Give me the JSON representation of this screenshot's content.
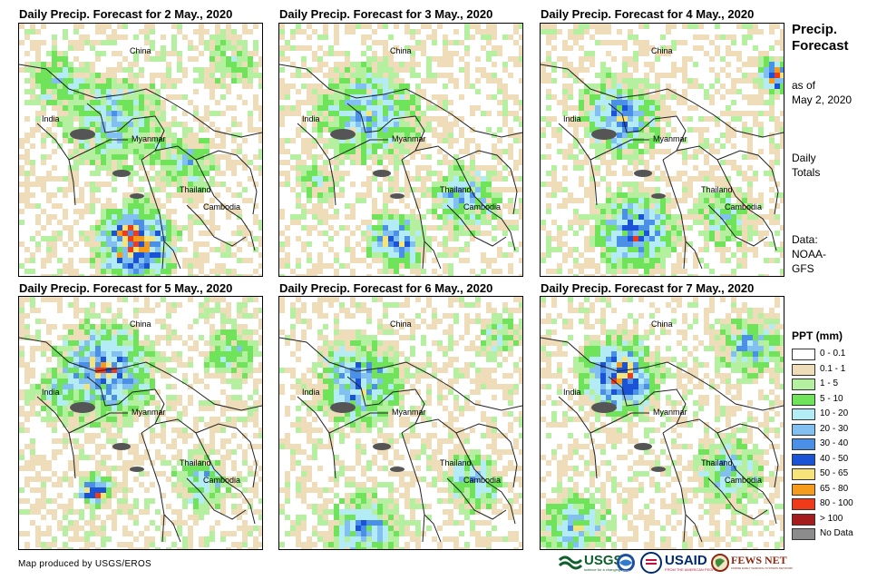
{
  "panels": [
    {
      "title": "Daily Precip. Forecast for 2 May., 2020"
    },
    {
      "title": "Daily Precip. Forecast for 3 May., 2020"
    },
    {
      "title": "Daily Precip. Forecast for 4 May., 2020"
    },
    {
      "title": "Daily Precip. Forecast for 5 May., 2020"
    },
    {
      "title": "Daily Precip. Forecast for 6 May., 2020"
    },
    {
      "title": "Daily Precip. Forecast for 7 May., 2020"
    }
  ],
  "places": {
    "china": "China",
    "india": "India",
    "myanmar": "Myanmar",
    "thailand": "Thailand",
    "cambodia": "Cambodia"
  },
  "side": {
    "title_line1": "Precip.",
    "title_line2": "Forecast",
    "as_of_line1": "as of",
    "as_of_line2": "May 2, 2020",
    "daily_line1": "Daily",
    "daily_line2": "Totals",
    "data_line1": "Data:",
    "data_line2": "NOAA-",
    "data_line3": "GFS"
  },
  "legend": {
    "title": "PPT (mm)",
    "items": [
      {
        "label": "0 - 0.1",
        "color": "#ffffff"
      },
      {
        "label": "0.1 - 1",
        "color": "#efdcb8"
      },
      {
        "label": "1 - 5",
        "color": "#b4f0a0"
      },
      {
        "label": "5 - 10",
        "color": "#6fe35a"
      },
      {
        "label": "10 - 20",
        "color": "#b4ecf6"
      },
      {
        "label": "20 - 30",
        "color": "#82c0f2"
      },
      {
        "label": "30 - 40",
        "color": "#4a90e6"
      },
      {
        "label": "40 - 50",
        "color": "#1b53d6"
      },
      {
        "label": "50 - 65",
        "color": "#f6e37a"
      },
      {
        "label": "65 - 80",
        "color": "#f59c1d"
      },
      {
        "label": "80 - 100",
        "color": "#ef3b1a"
      },
      {
        "label": "> 100",
        "color": "#a41c1c"
      },
      {
        "label": "No Data",
        "color": "#8c8c8c"
      }
    ]
  },
  "credit": "Map produced by USGS/EROS",
  "logos": {
    "usgs": "USGS",
    "usgs_tagline": "science for a changing world",
    "noaa": "NOAA",
    "usaid": "USAID",
    "usaid_tagline": "FROM THE AMERICAN PEOPLE",
    "fewsnet": "FEWS NET",
    "fewsnet_tagline": "FAMINE EARLY WARNING SYSTEMS NETWORK"
  }
}
